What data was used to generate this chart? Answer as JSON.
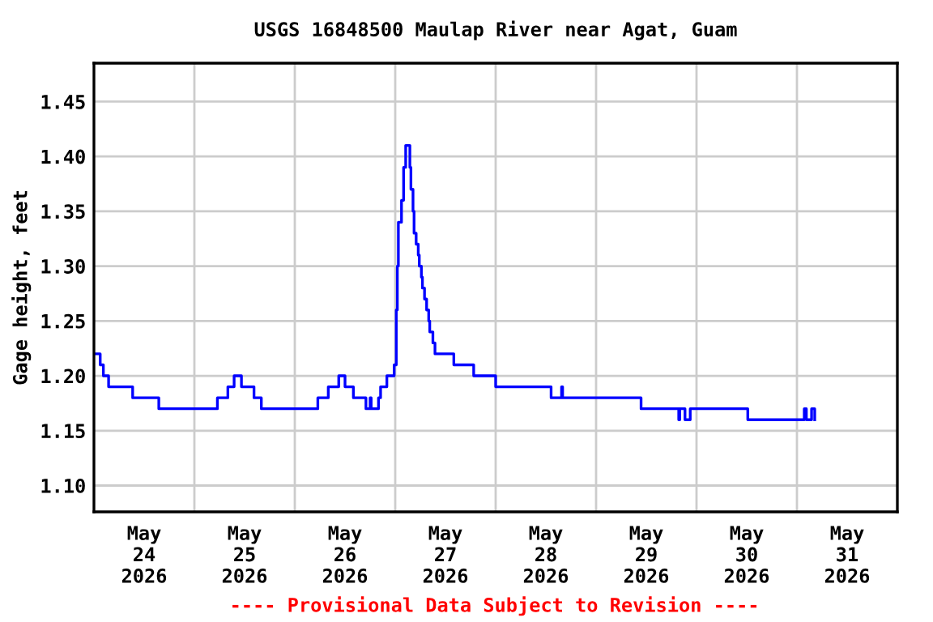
{
  "chart_data": {
    "type": "step",
    "title": "USGS 16848500 Maulap River near Agat, Guam",
    "ylabel": "Gage height, feet",
    "annotations": [
      "---- Provisional Data Subject to Revision ----"
    ],
    "xlim": [
      "2026-05-24T00:00",
      "2026-06-01T00:00"
    ],
    "xticks": [
      {
        "value": "2026-05-24T12:00",
        "label": "May\n24\n2026"
      },
      {
        "value": "2026-05-25T00:00",
        "label": null
      },
      {
        "value": "2026-05-25T12:00",
        "label": "May\n25\n2026"
      },
      {
        "value": "2026-05-26T00:00",
        "label": null
      },
      {
        "value": "2026-05-26T12:00",
        "label": "May\n26\n2026"
      },
      {
        "value": "2026-05-27T00:00",
        "label": null
      },
      {
        "value": "2026-05-27T12:00",
        "label": "May\n27\n2026"
      },
      {
        "value": "2026-05-28T00:00",
        "label": null
      },
      {
        "value": "2026-05-28T12:00",
        "label": "May\n28\n2026"
      },
      {
        "value": "2026-05-29T00:00",
        "label": null
      },
      {
        "value": "2026-05-29T12:00",
        "label": "May\n29\n2026"
      },
      {
        "value": "2026-05-30T00:00",
        "label": null
      },
      {
        "value": "2026-05-30T12:00",
        "label": "May\n30\n2026"
      },
      {
        "value": "2026-05-31T00:00",
        "label": null
      },
      {
        "value": "2026-05-31T12:00",
        "label": "May\n31\n2026"
      }
    ],
    "ylim": [
      1.076,
      1.485
    ],
    "yticks": [
      {
        "value": 1.1,
        "label": "1.10"
      },
      {
        "value": 1.15,
        "label": "1.15"
      },
      {
        "value": 1.2,
        "label": "1.20"
      },
      {
        "value": 1.25,
        "label": "1.25"
      },
      {
        "value": 1.3,
        "label": "1.30"
      },
      {
        "value": 1.35,
        "label": "1.35"
      },
      {
        "value": 1.4,
        "label": "1.40"
      },
      {
        "value": 1.45,
        "label": "1.45"
      }
    ],
    "grid": true,
    "line_style": "solid",
    "marker": "none",
    "series": [
      {
        "color": "#0000ff",
        "x": [
          "2026-05-24T00:00",
          "2026-05-24T01:30",
          "2026-05-24T02:15",
          "2026-05-24T03:30",
          "2026-05-24T09:15",
          "2026-05-24T15:30",
          "2026-05-25T05:30",
          "2026-05-25T08:00",
          "2026-05-25T09:30",
          "2026-05-25T11:15",
          "2026-05-25T14:15",
          "2026-05-25T16:00",
          "2026-05-26T05:30",
          "2026-05-26T08:00",
          "2026-05-26T10:30",
          "2026-05-26T12:00",
          "2026-05-26T14:00",
          "2026-05-26T17:00",
          "2026-05-26T18:00",
          "2026-05-26T18:15",
          "2026-05-26T20:00",
          "2026-05-26T20:30",
          "2026-05-26T22:00",
          "2026-05-26T23:45",
          "2026-05-27T00:15",
          "2026-05-27T00:30",
          "2026-05-27T00:45",
          "2026-05-27T01:30",
          "2026-05-27T02:00",
          "2026-05-27T02:30",
          "2026-05-27T03:30",
          "2026-05-27T03:45",
          "2026-05-27T04:15",
          "2026-05-27T04:30",
          "2026-05-27T05:00",
          "2026-05-27T05:30",
          "2026-05-27T05:45",
          "2026-05-27T06:15",
          "2026-05-27T06:30",
          "2026-05-27T07:00",
          "2026-05-27T07:30",
          "2026-05-27T08:00",
          "2026-05-27T08:15",
          "2026-05-27T09:00",
          "2026-05-27T09:30",
          "2026-05-27T14:00",
          "2026-05-27T18:45",
          "2026-05-28T00:00",
          "2026-05-28T13:15",
          "2026-05-28T15:45",
          "2026-05-28T16:00",
          "2026-05-29T10:45",
          "2026-05-29T19:45",
          "2026-05-29T20:00",
          "2026-05-29T21:15",
          "2026-05-29T22:30",
          "2026-05-30T12:15",
          "2026-05-31T01:45",
          "2026-05-31T02:15",
          "2026-05-31T03:30",
          "2026-05-31T04:15"
        ],
        "values": [
          1.22,
          1.21,
          1.2,
          1.19,
          1.18,
          1.17,
          1.18,
          1.19,
          1.2,
          1.19,
          1.18,
          1.17,
          1.18,
          1.19,
          1.2,
          1.19,
          1.18,
          1.17,
          1.18,
          1.17,
          1.18,
          1.19,
          1.2,
          1.21,
          1.26,
          1.3,
          1.34,
          1.36,
          1.39,
          1.41,
          1.39,
          1.37,
          1.35,
          1.33,
          1.32,
          1.31,
          1.3,
          1.29,
          1.28,
          1.27,
          1.26,
          1.25,
          1.24,
          1.23,
          1.22,
          1.21,
          1.2,
          1.19,
          1.18,
          1.19,
          1.18,
          1.17,
          1.16,
          1.17,
          1.16,
          1.17,
          1.16,
          1.17,
          1.16,
          1.17,
          1.16
        ]
      }
    ]
  }
}
